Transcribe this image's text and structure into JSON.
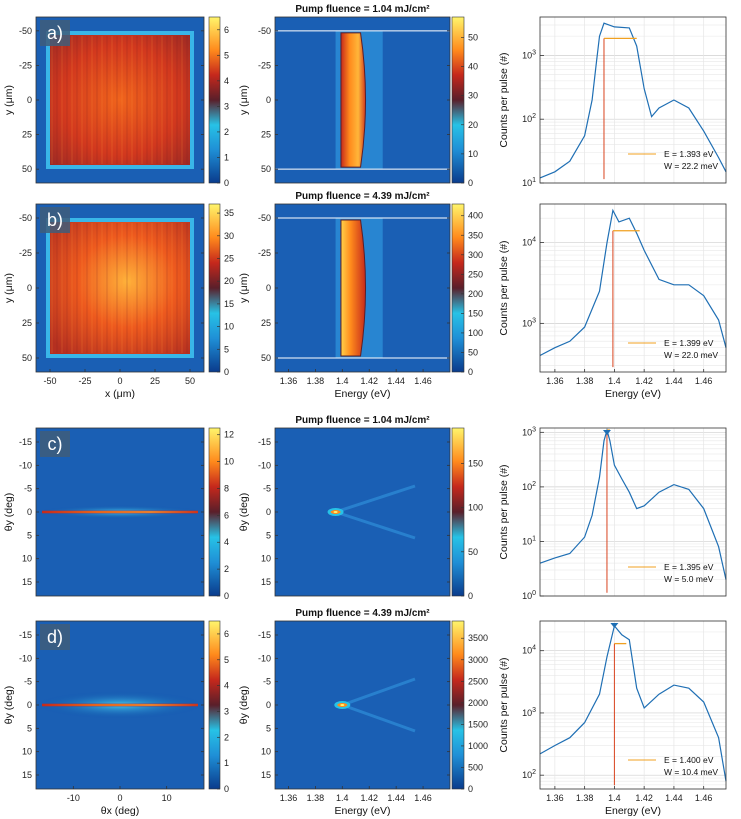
{
  "figure": {
    "title": "Multi-panel figure: real-space and momentum-space emission maps, energy-resolved images and log-scale spectra"
  },
  "chart_data": [
    {
      "type": "heatmap",
      "panel": "a",
      "label": "a)",
      "title": "",
      "xlabel": "",
      "ylabel": "y (μm)",
      "xlim": [
        -60,
        60
      ],
      "ylim": [
        -60,
        60
      ],
      "y_reversed": true,
      "xticks": [],
      "yticks": [
        -50,
        -25,
        0,
        25,
        50
      ],
      "colorbar": {
        "ticks": [
          0,
          1,
          2,
          3,
          4,
          5,
          6
        ],
        "range": [
          0,
          6.5
        ]
      },
      "colormap": "parula-hot"
    },
    {
      "type": "heatmap",
      "panel": "a",
      "label": "",
      "title": "Pump fluence = 1.04 mJ/cm²",
      "xlabel": "",
      "ylabel": "y (μm)",
      "xlim": [
        1.35,
        1.48
      ],
      "ylim": [
        -60,
        60
      ],
      "y_reversed": true,
      "xticks": [],
      "yticks": [
        -50,
        -25,
        0,
        25,
        50
      ],
      "colorbar": {
        "ticks": [
          0,
          10,
          20,
          30,
          40,
          50
        ],
        "range": [
          0,
          57
        ]
      },
      "guide_lines_y": [
        -50,
        50
      ]
    },
    {
      "type": "line",
      "panel": "a",
      "title": "",
      "xlabel": "",
      "ylabel": "Counts per pulse (#)",
      "yscale": "log",
      "xlim": [
        1.35,
        1.475
      ],
      "ylim": [
        10,
        4000
      ],
      "xticks": [],
      "x": [
        1.35,
        1.36,
        1.37,
        1.38,
        1.385,
        1.388,
        1.39,
        1.393,
        1.4,
        1.41,
        1.415,
        1.42,
        1.425,
        1.43,
        1.44,
        1.45,
        1.46,
        1.47,
        1.475
      ],
      "y": [
        12,
        15,
        22,
        55,
        200,
        800,
        2000,
        3200,
        2800,
        2700,
        1400,
        300,
        110,
        150,
        200,
        150,
        65,
        25,
        15
      ],
      "annotation": {
        "E": "E  = 1.393 eV",
        "W": "W = 22.2 meV",
        "peak_x": 1.393,
        "fwhm_y": 1850,
        "fwhm_x": [
          1.393,
          1.415
        ]
      }
    },
    {
      "type": "heatmap",
      "panel": "b",
      "label": "b)",
      "title": "",
      "xlabel": "x (μm)",
      "ylabel": "y (μm)",
      "xlim": [
        -60,
        60
      ],
      "ylim": [
        -60,
        60
      ],
      "y_reversed": true,
      "xticks": [
        -50,
        -25,
        0,
        25,
        50
      ],
      "yticks": [
        -50,
        -25,
        0,
        25,
        50
      ],
      "colorbar": {
        "ticks": [
          0,
          5,
          10,
          15,
          20,
          25,
          30,
          35
        ],
        "range": [
          0,
          37
        ]
      }
    },
    {
      "type": "heatmap",
      "panel": "b",
      "label": "",
      "title": "Pump fluence = 4.39 mJ/cm²",
      "xlabel": "Energy (eV)",
      "ylabel": "y (μm)",
      "xlim": [
        1.35,
        1.48
      ],
      "ylim": [
        -60,
        60
      ],
      "y_reversed": true,
      "xticks": [
        1.36,
        1.38,
        1.4,
        1.42,
        1.44,
        1.46
      ],
      "yticks": [
        -50,
        -25,
        0,
        25,
        50
      ],
      "colorbar": {
        "ticks": [
          0,
          50,
          100,
          150,
          200,
          250,
          300,
          350,
          400
        ],
        "range": [
          0,
          430
        ]
      },
      "guide_lines_y": [
        -50,
        50
      ]
    },
    {
      "type": "line",
      "panel": "b",
      "title": "",
      "xlabel": "Energy (eV)",
      "ylabel": "Counts per pulse (#)",
      "yscale": "log",
      "xlim": [
        1.35,
        1.475
      ],
      "ylim": [
        250,
        30000
      ],
      "xticks": [
        1.36,
        1.38,
        1.4,
        1.42,
        1.44,
        1.46
      ],
      "x": [
        1.35,
        1.36,
        1.37,
        1.38,
        1.39,
        1.395,
        1.399,
        1.403,
        1.41,
        1.415,
        1.42,
        1.43,
        1.44,
        1.45,
        1.46,
        1.47,
        1.475
      ],
      "y": [
        400,
        500,
        600,
        900,
        2500,
        10000,
        25000,
        18000,
        20000,
        13000,
        8000,
        3500,
        3000,
        3000,
        2200,
        1100,
        500
      ],
      "annotation": {
        "E": "E  = 1.399 eV",
        "W": "W = 22.0 meV",
        "peak_x": 1.399,
        "fwhm_y": 14000,
        "fwhm_x": [
          1.399,
          1.417
        ]
      }
    },
    {
      "type": "heatmap",
      "panel": "c",
      "label": "c)",
      "title": "",
      "xlabel": "",
      "ylabel": "θy (deg)",
      "xlim": [
        -18,
        18
      ],
      "ylim": [
        -18,
        18
      ],
      "y_reversed": true,
      "xticks": [],
      "yticks": [
        -15,
        -10,
        -5,
        0,
        5,
        10,
        15
      ],
      "colorbar": {
        "ticks": [
          0,
          2,
          4,
          6,
          8,
          10,
          12
        ],
        "range": [
          0,
          12.5
        ]
      }
    },
    {
      "type": "heatmap",
      "panel": "c",
      "label": "",
      "title": "Pump fluence = 1.04 mJ/cm²",
      "xlabel": "",
      "ylabel": "θy (deg)",
      "xlim": [
        1.35,
        1.48
      ],
      "ylim": [
        -18,
        18
      ],
      "y_reversed": true,
      "xticks": [],
      "yticks": [
        -15,
        -10,
        -5,
        0,
        5,
        10,
        15
      ],
      "colorbar": {
        "ticks": [
          0,
          50,
          100,
          150
        ],
        "range": [
          0,
          190
        ]
      }
    },
    {
      "type": "line",
      "panel": "c",
      "title": "",
      "xlabel": "",
      "ylabel": "Counts per pulse (#)",
      "yscale": "log",
      "xlim": [
        1.35,
        1.475
      ],
      "ylim": [
        1,
        1200
      ],
      "xticks": [],
      "x": [
        1.35,
        1.36,
        1.37,
        1.38,
        1.385,
        1.39,
        1.393,
        1.395,
        1.397,
        1.4,
        1.405,
        1.41,
        1.415,
        1.42,
        1.43,
        1.44,
        1.45,
        1.46,
        1.47,
        1.475
      ],
      "y": [
        4,
        5,
        6,
        12,
        30,
        150,
        700,
        1100,
        700,
        250,
        140,
        80,
        40,
        45,
        80,
        110,
        90,
        40,
        8,
        2
      ],
      "annotation": {
        "E": "E  = 1.395 eV",
        "W": "W = 5.0 meV",
        "peak_x": 1.395,
        "fwhm_y": 1100,
        "fwhm_x": [
          1.395,
          1.395
        ]
      }
    },
    {
      "type": "heatmap",
      "panel": "d",
      "label": "d)",
      "title": "",
      "xlabel": "θx (deg)",
      "ylabel": "θy (deg)",
      "xlim": [
        -18,
        18
      ],
      "ylim": [
        -18,
        18
      ],
      "y_reversed": true,
      "xticks": [
        -10,
        0,
        10
      ],
      "yticks": [
        -15,
        -10,
        -5,
        0,
        5,
        10,
        15
      ],
      "colorbar": {
        "ticks": [
          0,
          1,
          2,
          3,
          4,
          5,
          6
        ],
        "range": [
          0,
          6.5
        ]
      }
    },
    {
      "type": "heatmap",
      "panel": "d",
      "label": "",
      "title": "Pump fluence = 4.39 mJ/cm²",
      "xlabel": "Energy (eV)",
      "ylabel": "θy (deg)",
      "xlim": [
        1.35,
        1.48
      ],
      "ylim": [
        -18,
        18
      ],
      "y_reversed": true,
      "xticks": [
        1.36,
        1.38,
        1.4,
        1.42,
        1.44,
        1.46
      ],
      "yticks": [
        -15,
        -10,
        -5,
        0,
        5,
        10,
        15
      ],
      "colorbar": {
        "ticks": [
          0,
          500,
          1000,
          1500,
          2000,
          2500,
          3000,
          3500
        ],
        "range": [
          0,
          3900
        ]
      }
    },
    {
      "type": "line",
      "panel": "d",
      "title": "",
      "xlabel": "Energy (eV)",
      "ylabel": "Counts per pulse (#)",
      "yscale": "log",
      "xlim": [
        1.35,
        1.475
      ],
      "ylim": [
        60,
        30000
      ],
      "xticks": [
        1.36,
        1.38,
        1.4,
        1.42,
        1.44,
        1.46
      ],
      "x": [
        1.35,
        1.36,
        1.37,
        1.38,
        1.39,
        1.395,
        1.4,
        1.405,
        1.41,
        1.415,
        1.42,
        1.43,
        1.44,
        1.45,
        1.46,
        1.47,
        1.475
      ],
      "y": [
        220,
        300,
        400,
        700,
        2000,
        8000,
        25000,
        18000,
        15000,
        2500,
        1200,
        2000,
        2800,
        2500,
        1500,
        400,
        80
      ],
      "annotation": {
        "E": "E  = 1.400 eV",
        "W": "W = 10.4 meV",
        "peak_x": 1.4,
        "fwhm_y": 13000,
        "fwhm_x": [
          1.4,
          1.408
        ]
      }
    }
  ]
}
